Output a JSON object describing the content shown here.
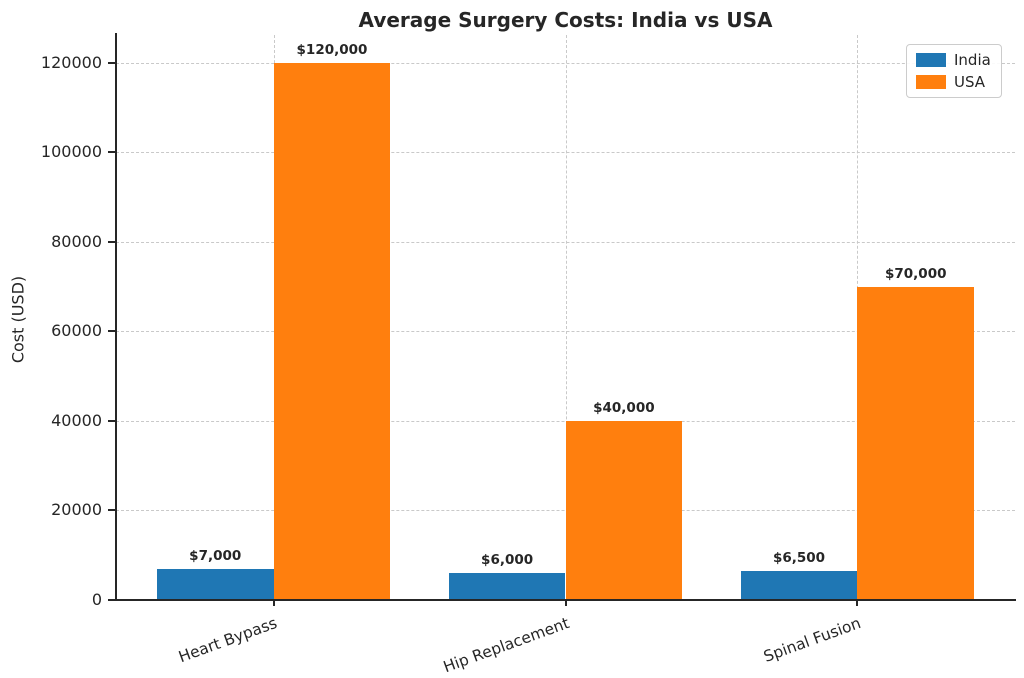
{
  "chart_data": {
    "type": "bar",
    "title": "Average Surgery Costs: India vs USA",
    "xlabel": "",
    "ylabel": "Cost (USD)",
    "categories": [
      "Heart Bypass",
      "Hip Replacement",
      "Spinal Fusion"
    ],
    "series": [
      {
        "name": "India",
        "color": "#1f77b4",
        "values": [
          7000,
          6000,
          6500
        ],
        "value_labels": [
          "$7,000",
          "$6,000",
          "$6,500"
        ]
      },
      {
        "name": "USA",
        "color": "#ff7f0e",
        "values": [
          120000,
          40000,
          70000
        ],
        "value_labels": [
          "$120,000",
          "$40,000",
          "$70,000"
        ]
      }
    ],
    "yticks": [
      0,
      20000,
      40000,
      60000,
      80000,
      100000,
      120000
    ],
    "ytick_labels": [
      "0",
      "20000",
      "40000",
      "60000",
      "80000",
      "100000",
      "120000"
    ],
    "ylim": [
      0,
      126250
    ],
    "grid": "dashed gridlines on both x and y, drawn behind bars",
    "bar_width_fraction": 0.4,
    "xtick_rotation_deg": 20,
    "legend_position": "upper right"
  }
}
